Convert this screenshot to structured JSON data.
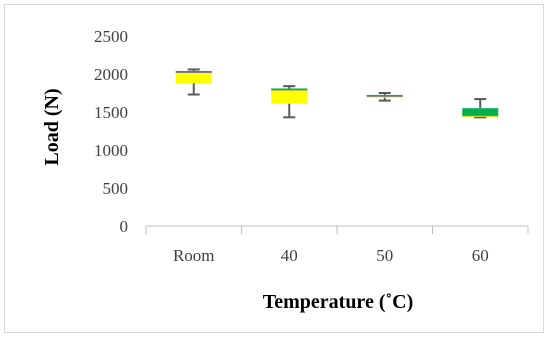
{
  "chart_data": {
    "type": "box",
    "title": "",
    "xlabel": "Temperature (˚C)",
    "ylabel": "Load (N)",
    "ylim": [
      0,
      2500
    ],
    "yticks": [
      0,
      500,
      1000,
      1500,
      2000,
      2500
    ],
    "grid": false,
    "categories": [
      "Room",
      "40",
      "50",
      "60"
    ],
    "boxes": [
      {
        "category": "Room",
        "min": 1730,
        "q1": 1880,
        "median": 2020,
        "q3": 2040,
        "max": 2060
      },
      {
        "category": "40",
        "min": 1430,
        "q1": 1610,
        "median": 1790,
        "q3": 1800,
        "max": 1840
      },
      {
        "category": "50",
        "min": 1650,
        "q1": 1690,
        "median": 1705,
        "q3": 1715,
        "max": 1750
      },
      {
        "category": "60",
        "min": 1430,
        "q1": 1435,
        "median": 1450,
        "q3": 1550,
        "max": 1670
      }
    ],
    "colors": {
      "lower_box": "#ffff00",
      "upper_box": "#00b050",
      "whisker": "#595959",
      "axis": "#bfbfbf",
      "median_line": "#808080"
    }
  }
}
